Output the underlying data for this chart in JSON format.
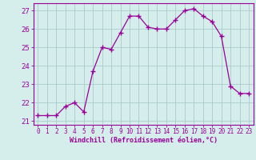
{
  "x": [
    0,
    1,
    2,
    3,
    4,
    5,
    6,
    7,
    8,
    9,
    10,
    11,
    12,
    13,
    14,
    15,
    16,
    17,
    18,
    19,
    20,
    21,
    22,
    23
  ],
  "y": [
    21.3,
    21.3,
    21.3,
    21.8,
    22.0,
    21.5,
    23.7,
    25.0,
    24.9,
    25.8,
    26.7,
    26.7,
    26.1,
    26.0,
    26.0,
    26.5,
    27.0,
    27.1,
    26.7,
    26.4,
    25.6,
    22.9,
    22.5,
    22.5
  ],
  "line_color": "#990099",
  "marker": "+",
  "marker_size": 4,
  "bg_color": "#d5eeeb",
  "grid_color": "#aacccc",
  "xlabel": "Windchill (Refroidissement éolien,°C)",
  "xlabel_color": "#990099",
  "ylabel_ticks": [
    21,
    22,
    23,
    24,
    25,
    26,
    27
  ],
  "ylim": [
    20.8,
    27.4
  ],
  "xlim": [
    -0.5,
    23.5
  ],
  "tick_color": "#990099",
  "spine_color": "#990099",
  "tick_fontsize": 5.5,
  "label_fontsize": 6.0
}
